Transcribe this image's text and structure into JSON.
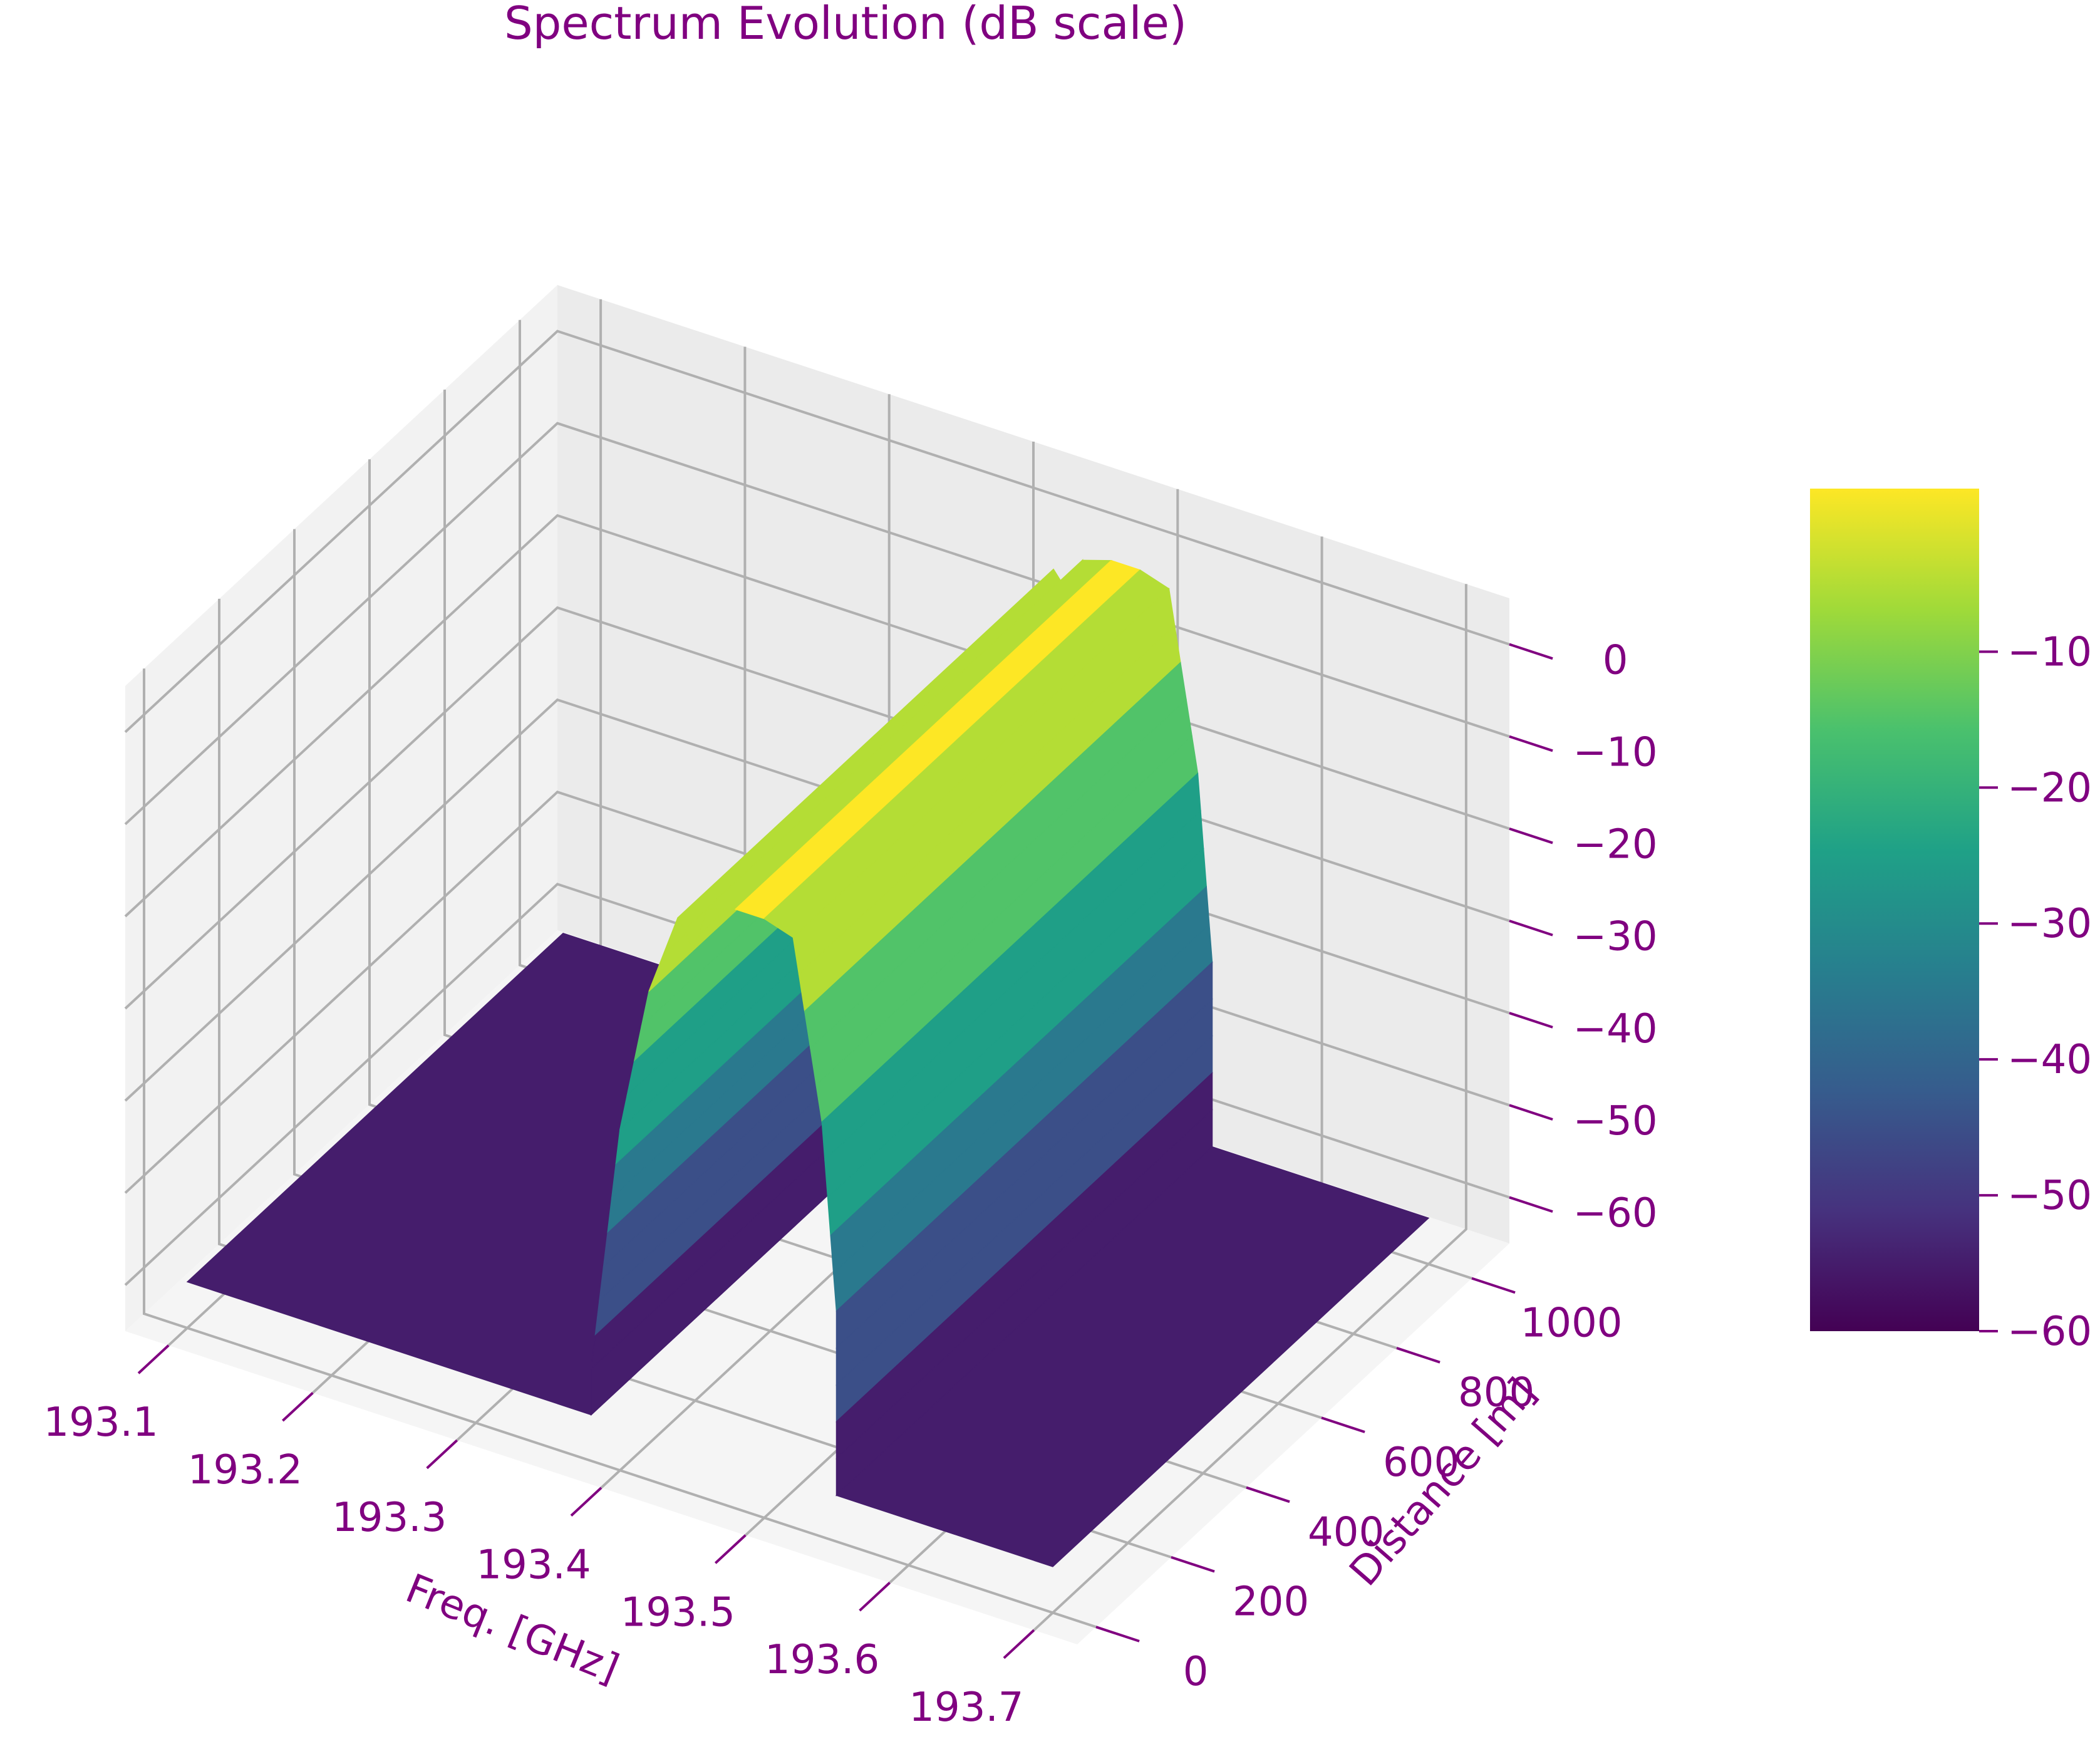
{
  "chart_data": {
    "type": "surface3d",
    "title": "Spectrum Evolution (dB scale)",
    "xlabel": "Freq. [GHz]",
    "ylabel": "Distance [m]",
    "zlabel": "",
    "colormap": "viridis",
    "colormap_stops": [
      "#440154",
      "#46327e",
      "#365c8d",
      "#277f8e",
      "#1fa187",
      "#4ac16d",
      "#a0da39",
      "#fde725"
    ],
    "text_color": "#800080",
    "pane_color": "#f2f2f2",
    "grid_color": "#b0b0b0",
    "xlim": [
      193.07,
      193.73
    ],
    "ylim": [
      -50,
      1100
    ],
    "zlim": [
      -65,
      5
    ],
    "x_ticks": [
      193.1,
      193.2,
      193.3,
      193.4,
      193.5,
      193.6,
      193.7
    ],
    "x_tick_labels": [
      "193.1",
      "193.2",
      "193.3",
      "193.4",
      "193.5",
      "193.6",
      "193.7"
    ],
    "y_ticks": [
      0,
      200,
      400,
      600,
      800,
      1000
    ],
    "y_tick_labels": [
      "0",
      "200",
      "400",
      "600",
      "800",
      "1000"
    ],
    "z_ticks": [
      0,
      -10,
      -20,
      -30,
      -40,
      -50,
      -60
    ],
    "z_tick_labels": [
      "0",
      "−10",
      "−20",
      "−30",
      "−40",
      "−50",
      "−60"
    ],
    "colorbar": {
      "range": [
        -60,
        2
      ],
      "ticks": [
        -10,
        -20,
        -30,
        -40,
        -50,
        -60
      ],
      "tick_labels": [
        "−10",
        "−20",
        "−30",
        "−40",
        "−50",
        "−60"
      ]
    },
    "distance": [
      0,
      1000
    ],
    "spectrum_profile": {
      "freq_GHz": [
        193.1,
        193.38,
        193.38,
        193.4,
        193.42,
        193.44,
        193.445,
        193.45,
        193.455,
        193.46,
        193.48,
        193.5,
        193.52,
        193.54,
        193.55,
        193.55,
        193.7
      ],
      "power_dB": [
        -60,
        -60,
        -55,
        -28,
        -12,
        -3,
        -4,
        -6,
        -4,
        -1,
        0,
        0,
        -1,
        -20,
        -40,
        -60,
        -60
      ]
    }
  }
}
